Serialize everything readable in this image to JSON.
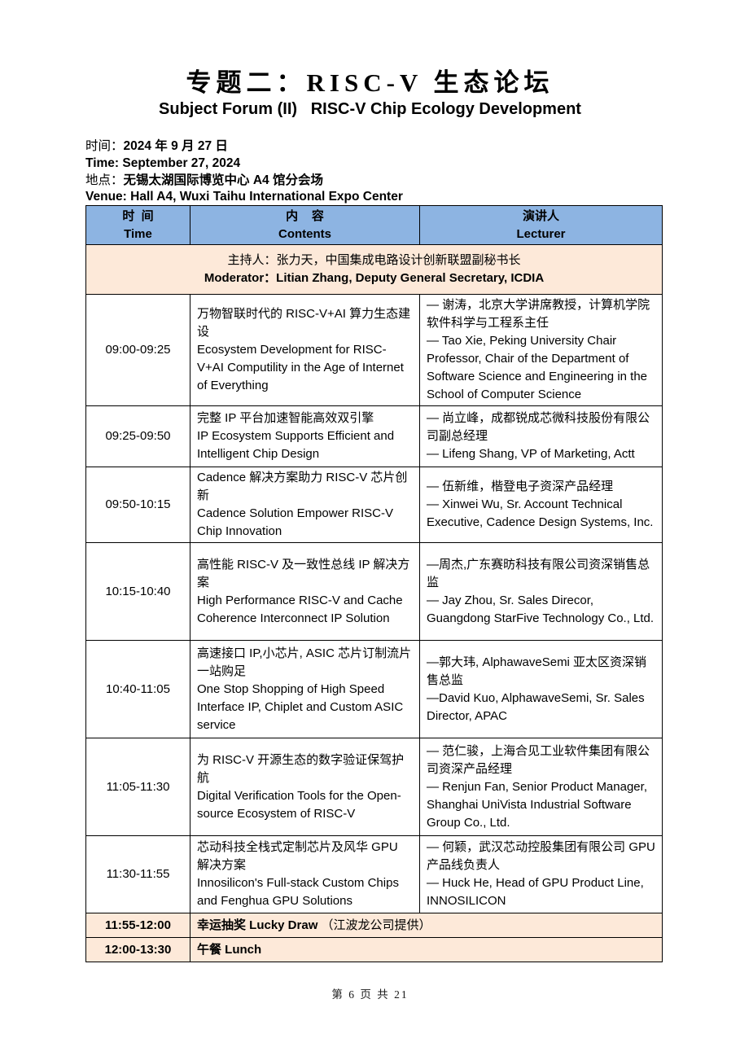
{
  "header": {
    "title_zh": "专题二：RISC-V 生态论坛",
    "title_en": "Subject Forum (II)   RISC-V Chip Ecology Development",
    "time_label_zh": "时间：",
    "time_value_zh": "2024 年 9 月 27 日",
    "time_line_en": "Time: September 27, 2024",
    "venue_label_zh": "地点：",
    "venue_value_zh": "无锡太湖国际博览中心 A4 馆分会场",
    "venue_line_en": "Venue: Hall A4, Wuxi Taihu International Expo Center"
  },
  "table": {
    "columns": [
      {
        "zh": "时  间",
        "en": "Time"
      },
      {
        "zh": "内    容",
        "en": "Contents"
      },
      {
        "zh": "演讲人",
        "en": "Lecturer"
      }
    ],
    "moderator": {
      "zh": "主持人：张力天，中国集成电路设计创新联盟副秘书长",
      "en": "Moderator：Litian Zhang, Deputy General Secretary, ICDIA"
    },
    "rows": [
      {
        "time": "09:00-09:25",
        "content_zh": "万物智联时代的 RISC-V+AI 算力生态建设",
        "content_en": "Ecosystem Development for RISC-V+AI Computility in the Age of Internet of Everything",
        "lecturer_zh": "— 谢涛，北京大学讲席教授，计算机学院软件科学与工程系主任",
        "lecturer_en": "— Tao Xie, Peking University Chair Professor, Chair of the Department of Software Science and Engineering in the School of Computer Science"
      },
      {
        "time": "09:25-09:50",
        "content_zh": "完整 IP 平台加速智能高效双引擎",
        "content_en": "IP Ecosystem Supports Efficient and Intelligent Chip Design",
        "lecturer_zh": "— 尚立峰，成都锐成芯微科技股份有限公司副总经理",
        "lecturer_en": "— Lifeng Shang, VP of Marketing, Actt"
      },
      {
        "time": "09:50-10:15",
        "content_zh": "Cadence 解决方案助力 RISC-V 芯片创新",
        "content_en": "Cadence Solution Empower RISC-V Chip Innovation",
        "lecturer_zh": "— 伍新维，楷登电子资深产品经理",
        "lecturer_en": "— Xinwei Wu, Sr. Account Technical Executive, Cadence Design Systems, Inc."
      },
      {
        "time": "10:15-10:40",
        "content_zh": "高性能 RISC-V 及一致性总线 IP 解决方案",
        "content_en": "High Performance RISC-V and Cache Coherence Interconnect IP Solution",
        "lecturer_zh": "—周杰,广东赛昉科技有限公司资深销售总监",
        "lecturer_en": "— Jay Zhou, Sr. Sales Direcor, Guangdong StarFive Technology Co., Ltd."
      },
      {
        "time": "10:40-11:05",
        "content_zh": "高速接口 IP,小芯片, ASIC 芯片订制流片一站购足",
        "content_en": "One Stop Shopping of High Speed Interface IP, Chiplet and Custom ASIC service",
        "lecturer_zh": "—郭大玮, AlphawaveSemi 亚太区资深销售总监",
        "lecturer_en": "—David Kuo, AlphawaveSemi, Sr. Sales Director, APAC"
      },
      {
        "time": "11:05-11:30",
        "content_zh": "为 RISC-V 开源生态的数字验证保驾护航",
        "content_en": "Digital Verification Tools for the Open-source Ecosystem of RISC-V",
        "lecturer_zh": "— 范仁骏，上海合见工业软件集团有限公司资深产品经理",
        "lecturer_en": "— Renjun Fan, Senior Product Manager, Shanghai UniVista Industrial Software Group Co., Ltd."
      },
      {
        "time": "11:30-11:55",
        "content_zh": "芯动科技全栈式定制芯片及风华 GPU 解决方案",
        "content_en": "Innosilicon's Full-stack Custom Chips and Fenghua GPU Solutions",
        "lecturer_zh": "— 何颖，武汉芯动控股集团有限公司 GPU 产品线负责人",
        "lecturer_en": "— Huck He, Head of GPU Product Line, INNOSILICON"
      }
    ],
    "special_rows": [
      {
        "time": "11:55-12:00",
        "text_bold": "幸运抽奖 Lucky Draw",
        "text_rest": "（江波龙公司提供）"
      },
      {
        "time": "12:00-13:30",
        "text_bold": "午餐 Lunch",
        "text_rest": ""
      }
    ]
  },
  "footer": {
    "page_text": "第 6 页 共 21"
  },
  "colors": {
    "header_bg": "#8DB4E2",
    "accent_bg": "#FDE9D9",
    "border": "#000000"
  }
}
